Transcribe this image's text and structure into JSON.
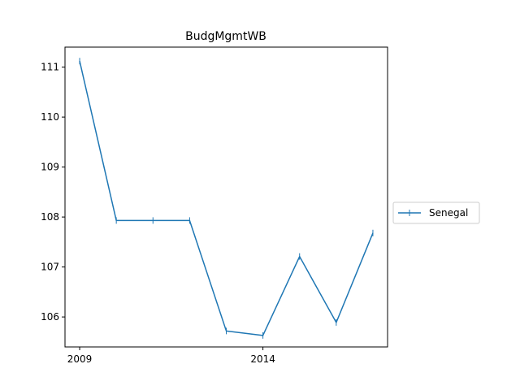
{
  "chart_data": {
    "type": "line",
    "title": "BudgMgmtWB",
    "xlabel": "",
    "ylabel": "",
    "x": [
      2009,
      2010,
      2011,
      2012,
      2013,
      2014,
      2015,
      2016,
      2017
    ],
    "series": [
      {
        "name": "Senegal",
        "color": "#1f77b4",
        "marker": "vertical-tick",
        "values": [
          111.12,
          107.93,
          107.93,
          107.93,
          105.72,
          105.63,
          107.21,
          105.89,
          107.68
        ]
      }
    ],
    "x_ticks": [
      2009,
      2014
    ],
    "y_ticks": [
      106,
      107,
      108,
      109,
      110,
      111
    ],
    "xlim": [
      2008.6,
      2017.4
    ],
    "ylim": [
      105.4,
      111.4
    ],
    "grid": false,
    "legend_position": "center-right, outside plot"
  }
}
